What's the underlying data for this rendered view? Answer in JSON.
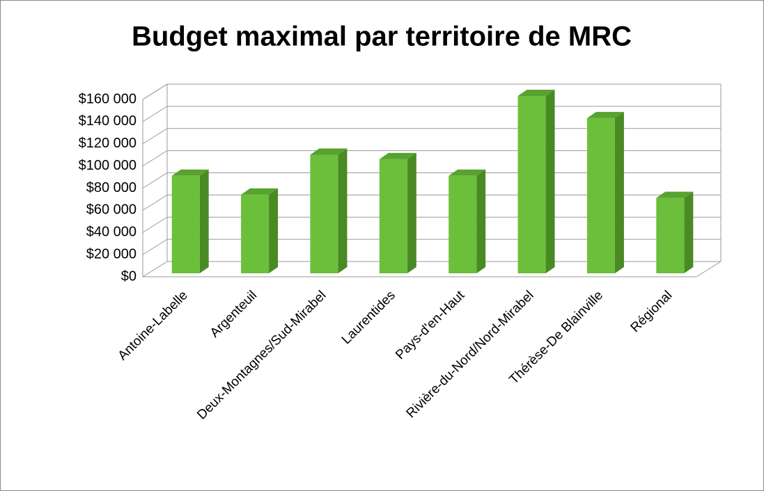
{
  "chart_data": {
    "type": "bar3d",
    "title": "Budget maximal par territoire de MRC",
    "categories": [
      "Antoine-Labelle",
      "Argenteuil",
      "Deux-Montagnes/Sud-Mirabel",
      "Laurentides",
      "Pays-d'en-Haut",
      "Rivière-du-Nord/Nord-Mirabel",
      "Thérèse-De Blainville",
      "Régional"
    ],
    "values": [
      88000,
      71000,
      107000,
      103000,
      88000,
      160000,
      140000,
      68000
    ],
    "color": "#6cbf3b",
    "ylim": [
      0,
      160000
    ],
    "yticks": [
      {
        "value": 0,
        "label": "$0"
      },
      {
        "value": 20000,
        "label": "$20 000"
      },
      {
        "value": 40000,
        "label": "$40 000"
      },
      {
        "value": 60000,
        "label": "$60 000"
      },
      {
        "value": 80000,
        "label": "$80 000"
      },
      {
        "value": 100000,
        "label": "$100 000"
      },
      {
        "value": 120000,
        "label": "$120 000"
      },
      {
        "value": 140000,
        "label": "$140 000"
      },
      {
        "value": 160000,
        "label": "$160 000"
      }
    ],
    "grid": true
  }
}
